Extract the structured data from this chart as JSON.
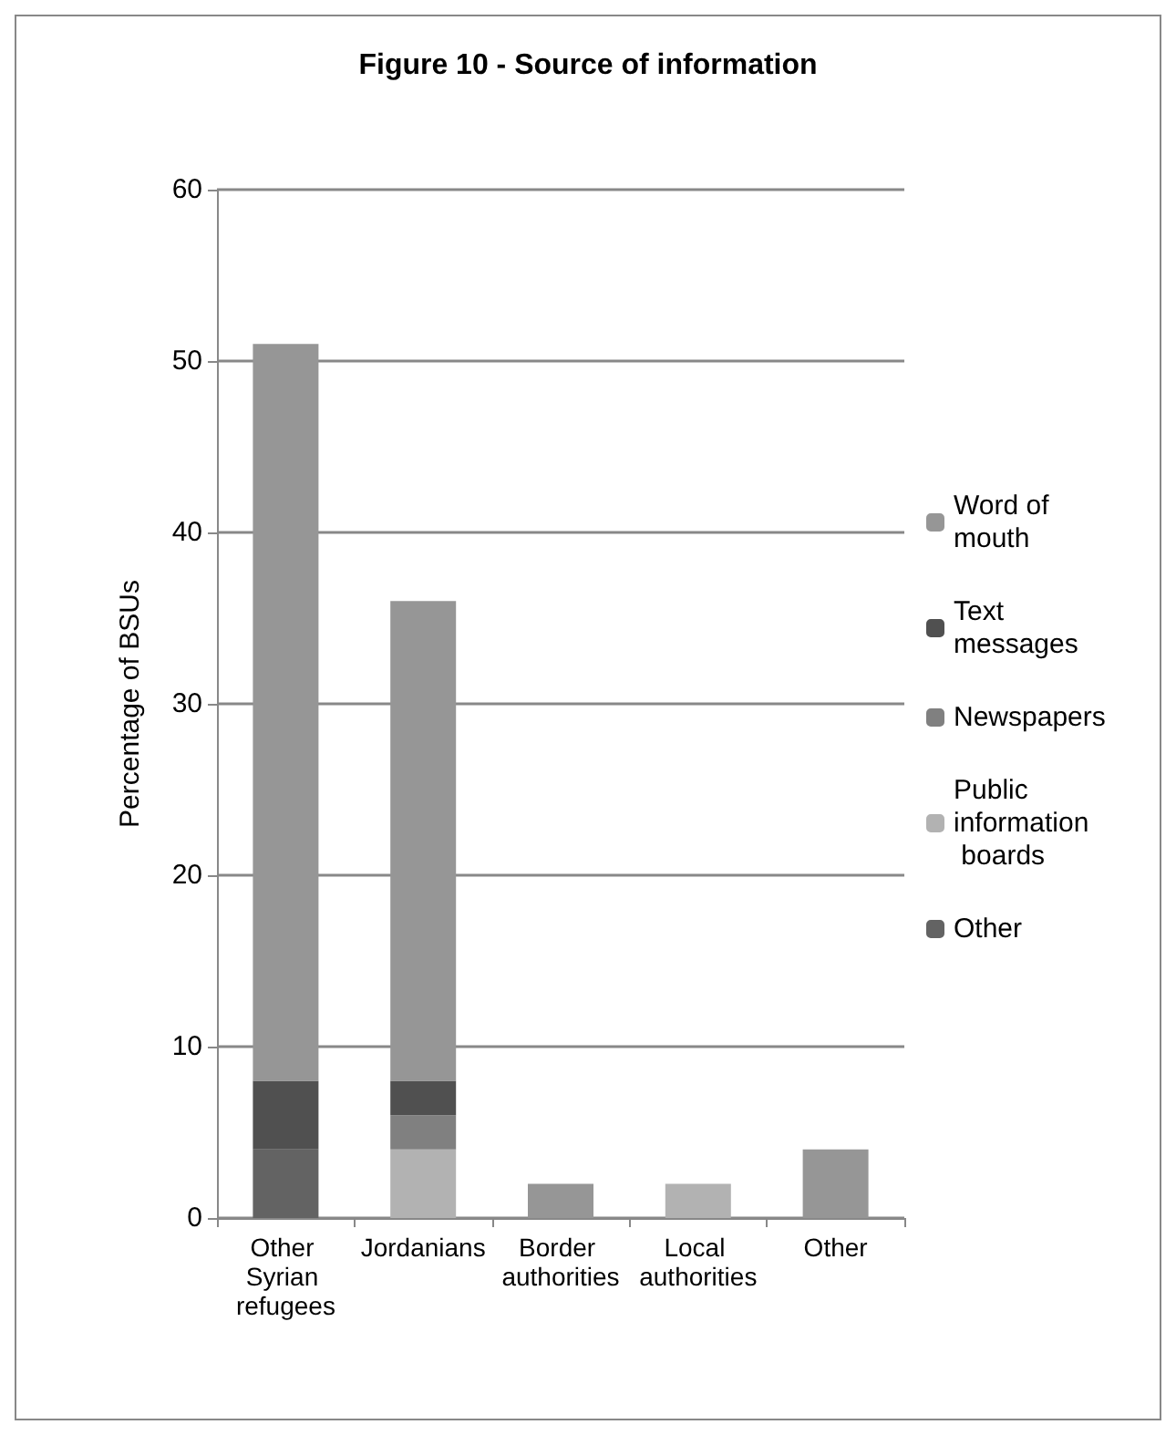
{
  "chart_data": {
    "type": "bar",
    "title": "Figure 10 - Source of information",
    "ylabel": "Percentage of BSUs",
    "categories": [
      "Other Syrian refugees",
      "Jordanians",
      "Border authorities",
      "Local authorities",
      "Other"
    ],
    "stacked": true,
    "series": [
      {
        "name": "Other",
        "color": "#636363",
        "values": [
          4,
          0,
          0,
          0,
          0
        ]
      },
      {
        "name": "Public information boards",
        "color": "#b2b2b2",
        "values": [
          0,
          4,
          0,
          2,
          0
        ]
      },
      {
        "name": "Newspapers",
        "color": "#808080",
        "values": [
          0,
          2,
          0,
          0,
          0
        ]
      },
      {
        "name": "Text messages",
        "color": "#505050",
        "values": [
          4,
          2,
          0,
          0,
          0
        ]
      },
      {
        "name": "Word of mouth",
        "color": "#969696",
        "values": [
          43,
          28,
          2,
          0,
          4
        ]
      }
    ],
    "ylim": [
      0,
      60
    ],
    "yticks": [
      0,
      10,
      20,
      30,
      40,
      50,
      60
    ],
    "grid": "y",
    "legend": "right"
  }
}
